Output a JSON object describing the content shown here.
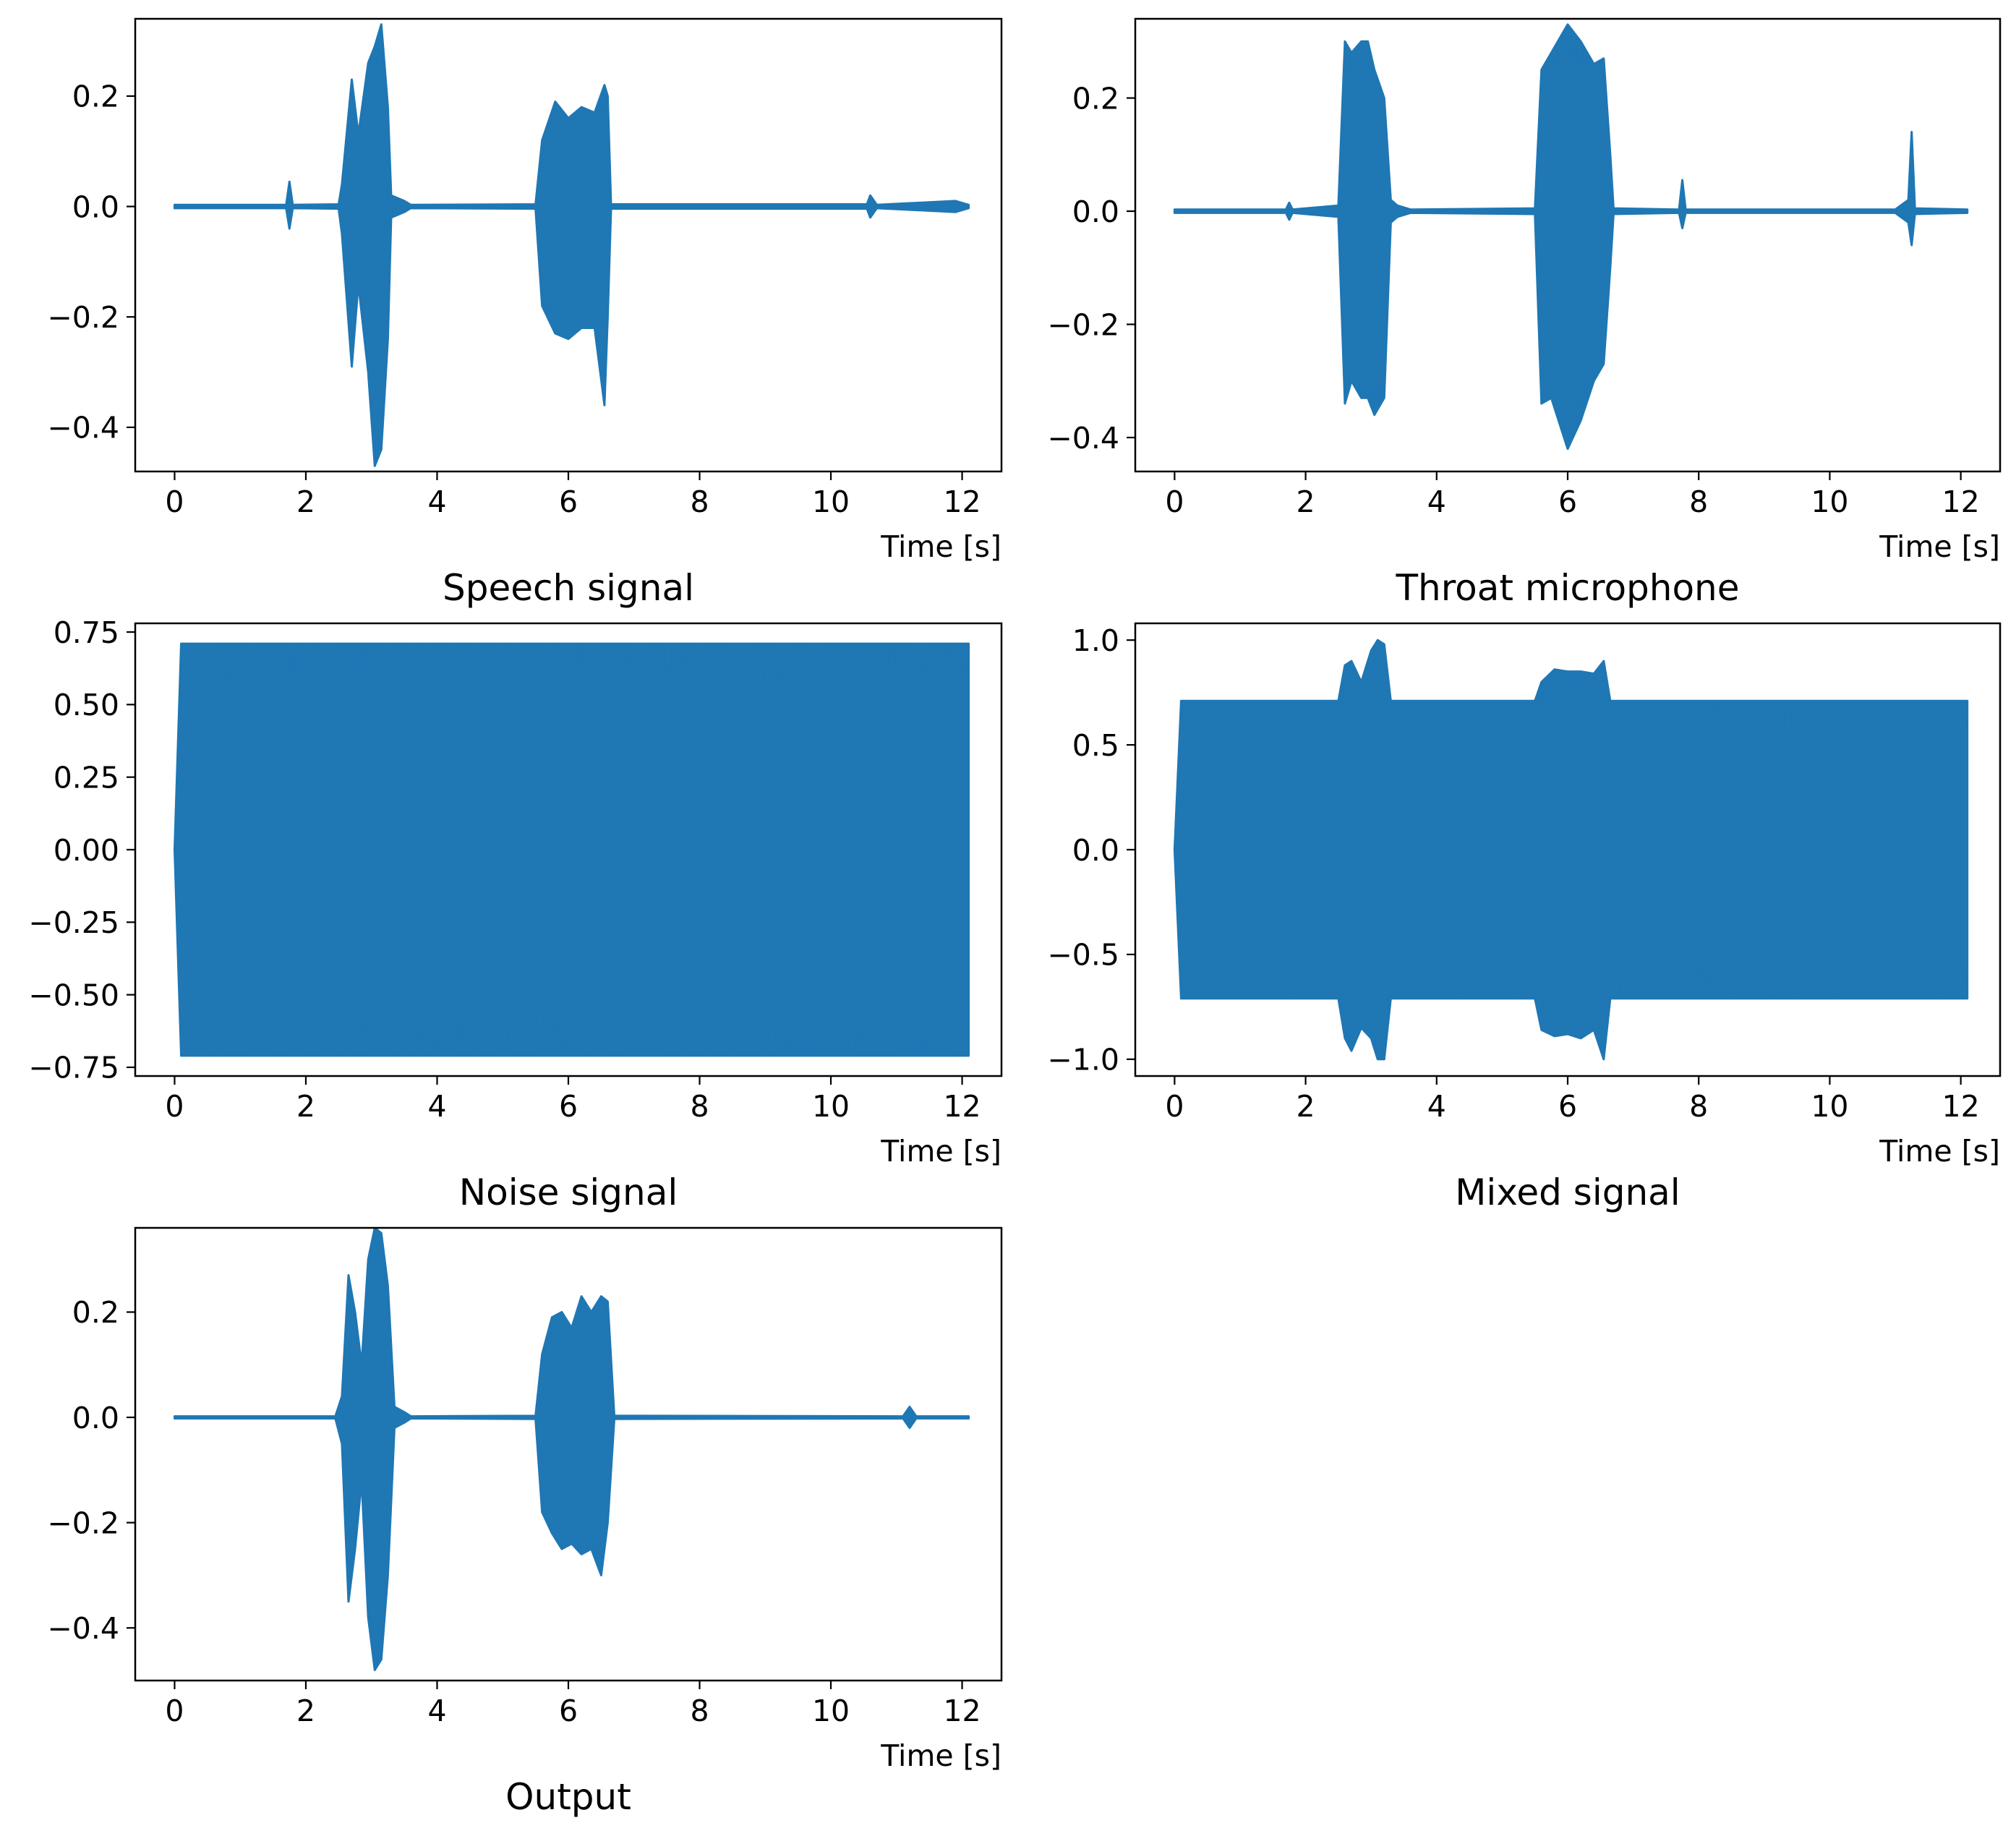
{
  "colors": {
    "series": "#1f77b4",
    "axes": "#000000",
    "background": "#ffffff"
  },
  "chart_data": [
    {
      "type": "line",
      "title": "Speech signal",
      "xlabel": "Time [s]",
      "ylabel": "",
      "xlim": [
        -0.6,
        12.6
      ],
      "ylim": [
        -0.48,
        0.34
      ],
      "xticks": [
        0,
        2,
        4,
        6,
        8,
        10,
        12
      ],
      "xtick_labels": [
        "0",
        "2",
        "4",
        "6",
        "8",
        "10",
        "12"
      ],
      "yticks": [
        -0.4,
        -0.2,
        0.0,
        0.2
      ],
      "ytick_labels": [
        "−0.4",
        "−0.2",
        "0.0",
        "0.2"
      ],
      "grid": false,
      "series": [
        {
          "name": "Speech signal",
          "envelope": {
            "t": [
              0.0,
              1.7,
              1.75,
              1.8,
              2.5,
              2.55,
              2.7,
              2.8,
              2.95,
              3.05,
              3.15,
              3.25,
              3.3,
              3.5,
              3.6,
              5.5,
              5.6,
              5.8,
              6.0,
              6.2,
              6.4,
              6.55,
              6.6,
              6.65,
              10.55,
              10.6,
              10.7,
              11.9,
              12.1
            ],
            "upper": [
              0.003,
              0.003,
              0.045,
              0.003,
              0.004,
              0.04,
              0.23,
              0.13,
              0.26,
              0.29,
              0.33,
              0.18,
              0.02,
              0.01,
              0.003,
              0.004,
              0.12,
              0.19,
              0.16,
              0.18,
              0.17,
              0.22,
              0.2,
              0.004,
              0.004,
              0.02,
              0.003,
              0.01,
              0.003
            ],
            "lower": [
              -0.003,
              -0.003,
              -0.04,
              -0.003,
              -0.004,
              -0.05,
              -0.29,
              -0.14,
              -0.3,
              -0.47,
              -0.44,
              -0.24,
              -0.02,
              -0.01,
              -0.003,
              -0.004,
              -0.18,
              -0.23,
              -0.24,
              -0.22,
              -0.22,
              -0.36,
              -0.2,
              -0.004,
              -0.004,
              -0.02,
              -0.003,
              -0.01,
              -0.003
            ]
          }
        }
      ]
    },
    {
      "type": "line",
      "title": "Throat microphone",
      "xlabel": "Time [s]",
      "ylabel": "",
      "xlim": [
        -0.6,
        12.6
      ],
      "ylim": [
        -0.46,
        0.34
      ],
      "xticks": [
        0,
        2,
        4,
        6,
        8,
        10,
        12
      ],
      "xtick_labels": [
        "0",
        "2",
        "4",
        "6",
        "8",
        "10",
        "12"
      ],
      "yticks": [
        -0.4,
        -0.2,
        0.0,
        0.2
      ],
      "ytick_labels": [
        "−0.4",
        "−0.2",
        "0.0",
        "0.2"
      ],
      "grid": false,
      "series": [
        {
          "name": "Throat microphone",
          "envelope": {
            "t": [
              0.0,
              1.7,
              1.75,
              1.8,
              2.5,
              2.6,
              2.7,
              2.85,
              2.95,
              3.05,
              3.2,
              3.3,
              3.4,
              3.6,
              5.5,
              5.6,
              5.75,
              6.0,
              6.2,
              6.4,
              6.55,
              6.65,
              6.7,
              7.7,
              7.75,
              7.8,
              11.0,
              11.2,
              11.25,
              11.3,
              12.1
            ],
            "upper": [
              0.003,
              0.003,
              0.015,
              0.003,
              0.01,
              0.3,
              0.28,
              0.3,
              0.3,
              0.25,
              0.2,
              0.02,
              0.01,
              0.003,
              0.005,
              0.25,
              0.28,
              0.33,
              0.3,
              0.26,
              0.27,
              0.1,
              0.005,
              0.003,
              0.055,
              0.003,
              0.003,
              0.02,
              0.14,
              0.005,
              0.003
            ],
            "lower": [
              -0.003,
              -0.003,
              -0.015,
              -0.003,
              -0.01,
              -0.34,
              -0.3,
              -0.33,
              -0.33,
              -0.36,
              -0.33,
              -0.02,
              -0.01,
              -0.003,
              -0.005,
              -0.34,
              -0.33,
              -0.42,
              -0.37,
              -0.3,
              -0.27,
              -0.1,
              -0.005,
              -0.003,
              -0.03,
              -0.003,
              -0.003,
              -0.02,
              -0.06,
              -0.005,
              -0.003
            ]
          }
        }
      ]
    },
    {
      "type": "line",
      "title": "Noise signal",
      "xlabel": "Time [s]",
      "ylabel": "",
      "xlim": [
        -0.6,
        12.6
      ],
      "ylim": [
        -0.78,
        0.78
      ],
      "xticks": [
        0,
        2,
        4,
        6,
        8,
        10,
        12
      ],
      "xtick_labels": [
        "0",
        "2",
        "4",
        "6",
        "8",
        "10",
        "12"
      ],
      "yticks": [
        -0.75,
        -0.5,
        -0.25,
        0.0,
        0.25,
        0.5,
        0.75
      ],
      "ytick_labels": [
        "−0.75",
        "−0.50",
        "−0.25",
        "0.00",
        "0.25",
        "0.50",
        "0.75"
      ],
      "grid": false,
      "series": [
        {
          "name": "Noise signal",
          "envelope": {
            "t": [
              0.0,
              0.1,
              12.1
            ],
            "upper": [
              0.0,
              0.71,
              0.71
            ],
            "lower": [
              0.0,
              -0.71,
              -0.71
            ]
          }
        }
      ]
    },
    {
      "type": "line",
      "title": "Mixed signal",
      "xlabel": "Time [s]",
      "ylabel": "",
      "xlim": [
        -0.6,
        12.6
      ],
      "ylim": [
        -1.08,
        1.08
      ],
      "xticks": [
        0,
        2,
        4,
        6,
        8,
        10,
        12
      ],
      "xtick_labels": [
        "0",
        "2",
        "4",
        "6",
        "8",
        "10",
        "12"
      ],
      "yticks": [
        -1.0,
        -0.5,
        0.0,
        0.5,
        1.0
      ],
      "ytick_labels": [
        "−1.0",
        "−0.5",
        "0.0",
        "0.5",
        "1.0"
      ],
      "grid": false,
      "series": [
        {
          "name": "Mixed signal",
          "envelope": {
            "t": [
              0.0,
              0.1,
              2.5,
              2.6,
              2.7,
              2.85,
              3.0,
              3.1,
              3.2,
              3.3,
              5.5,
              5.6,
              5.8,
              6.0,
              6.2,
              6.4,
              6.55,
              6.65,
              12.1
            ],
            "upper": [
              0.0,
              0.71,
              0.71,
              0.88,
              0.9,
              0.8,
              0.95,
              1.0,
              0.98,
              0.71,
              0.71,
              0.8,
              0.86,
              0.85,
              0.85,
              0.84,
              0.9,
              0.71,
              0.71
            ],
            "lower": [
              0.0,
              -0.71,
              -0.71,
              -0.9,
              -0.96,
              -0.85,
              -0.9,
              -1.0,
              -1.0,
              -0.71,
              -0.71,
              -0.86,
              -0.89,
              -0.88,
              -0.9,
              -0.86,
              -1.0,
              -0.71,
              -0.71
            ]
          }
        }
      ]
    },
    {
      "type": "line",
      "title": "Output",
      "xlabel": "Time [s]",
      "ylabel": "",
      "xlim": [
        -0.6,
        12.6
      ],
      "ylim": [
        -0.5,
        0.36
      ],
      "xticks": [
        0,
        2,
        4,
        6,
        8,
        10,
        12
      ],
      "xtick_labels": [
        "0",
        "2",
        "4",
        "6",
        "8",
        "10",
        "12"
      ],
      "yticks": [
        -0.4,
        -0.2,
        0.0,
        0.2
      ],
      "ytick_labels": [
        "−0.4",
        "−0.2",
        "0.0",
        "0.2"
      ],
      "grid": false,
      "series": [
        {
          "name": "Output",
          "envelope": {
            "t": [
              0.0,
              2.45,
              2.55,
              2.65,
              2.75,
              2.85,
              2.95,
              3.05,
              3.15,
              3.25,
              3.35,
              3.5,
              3.6,
              5.5,
              5.6,
              5.75,
              5.9,
              6.05,
              6.2,
              6.35,
              6.5,
              6.6,
              6.7,
              11.1,
              11.2,
              11.3,
              12.1
            ],
            "upper": [
              0.002,
              0.002,
              0.04,
              0.27,
              0.2,
              0.1,
              0.3,
              0.36,
              0.35,
              0.25,
              0.02,
              0.01,
              0.002,
              0.003,
              0.12,
              0.19,
              0.2,
              0.17,
              0.23,
              0.2,
              0.23,
              0.22,
              0.003,
              0.002,
              0.02,
              0.002,
              0.002
            ],
            "lower": [
              -0.002,
              -0.002,
              -0.05,
              -0.35,
              -0.25,
              -0.12,
              -0.38,
              -0.48,
              -0.46,
              -0.3,
              -0.02,
              -0.01,
              -0.002,
              -0.003,
              -0.18,
              -0.22,
              -0.25,
              -0.24,
              -0.26,
              -0.25,
              -0.3,
              -0.2,
              -0.003,
              -0.002,
              -0.02,
              -0.002,
              -0.002
            ]
          }
        }
      ]
    }
  ]
}
